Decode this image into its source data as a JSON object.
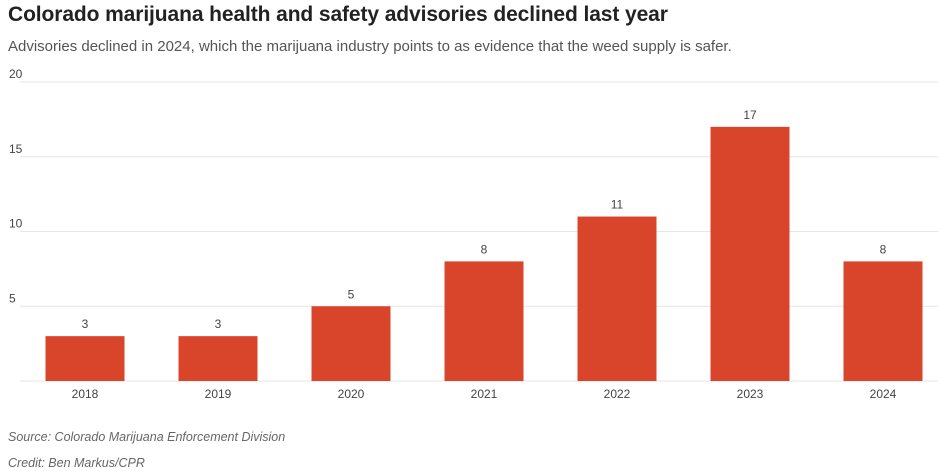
{
  "header": {
    "title": "Colorado marijuana health and safety advisories declined last year",
    "subtitle": "Advisories declined in 2024, which the marijuana industry points to as evidence that the weed supply is safer."
  },
  "footer": {
    "source": "Source: Colorado Marijuana Enforcement Division",
    "credit": "Credit: Ben Markus/CPR"
  },
  "colors": {
    "bar": "#d9452b",
    "grid": "#e6e6e6",
    "axis_text": "#444444"
  },
  "chart_data": {
    "type": "bar",
    "categories": [
      "2018",
      "2019",
      "2020",
      "2021",
      "2022",
      "2023",
      "2024"
    ],
    "values": [
      3,
      3,
      5,
      8,
      11,
      17,
      8
    ],
    "ylim": [
      0,
      20
    ],
    "yticks": [
      5,
      10,
      15,
      20
    ],
    "title": "Colorado marijuana health and safety advisories declined last year",
    "xlabel": "",
    "ylabel": "",
    "grid": true,
    "data_labels": true
  }
}
